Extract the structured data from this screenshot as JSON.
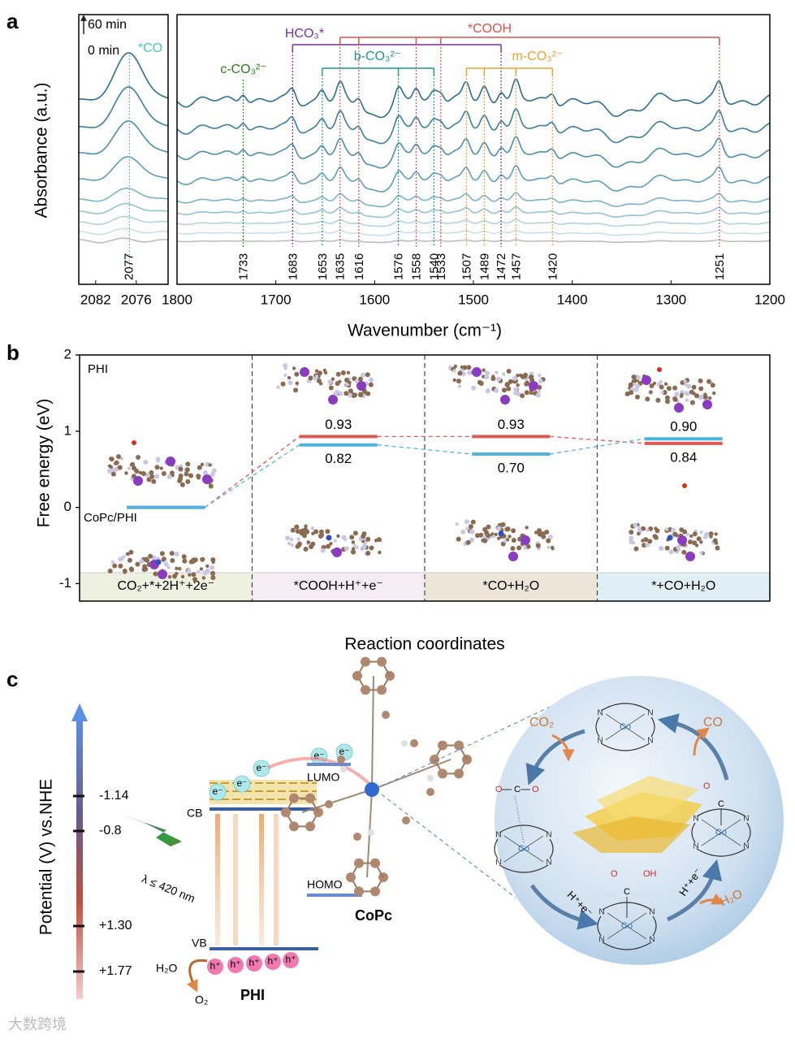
{
  "chart_data": [
    {
      "type": "spectra",
      "label": "a",
      "ylabel": "Absorbance (a.u.)",
      "xlabel": "Wavenumber (cm⁻¹)",
      "time_end": "60 min",
      "time_start": "0 min",
      "left": {
        "xlim": [
          2084.5,
          2071.3
        ],
        "xticks": [
          2082,
          2076
        ],
        "peak": {
          "name": "*CO",
          "value": 2077,
          "color": "#4cc3c3"
        }
      },
      "right": {
        "xlim": [
          1800,
          1200
        ],
        "xticks": [
          1800,
          1700,
          1600,
          1500,
          1400,
          1300,
          1200
        ],
        "species": [
          {
            "name": "c-CO₃²⁻",
            "color": "#2e7d1e",
            "peaks": [
              1733
            ]
          },
          {
            "name": "HCO₃*",
            "color": "#7b2d9b",
            "peaks": [
              1683,
              1472
            ]
          },
          {
            "name": "b-CO₃²⁻",
            "color": "#1a9a8a",
            "peaks": [
              1653,
              1576,
              1540
            ]
          },
          {
            "name": "*COOH",
            "color": "#e0504a",
            "peaks": [
              1635,
              1616,
              1558,
              1533,
              1251
            ]
          },
          {
            "name": "m-CO₃²⁻",
            "color": "#f0a030",
            "peaks": [
              1507,
              1489,
              1457,
              1420
            ]
          }
        ]
      }
    },
    {
      "type": "energy_levels",
      "label": "b",
      "ylabel": "Free energy (eV)",
      "xlabel": "Reaction coordinates",
      "categories": [
        "CO₂+*+2H⁺+2e⁻",
        "*COOH+H⁺+e⁻",
        "*CO+H₂O",
        "*+CO+H₂O"
      ],
      "band_colors": [
        "#eef0e0",
        "#f5ecf4",
        "#ede6d8",
        "#e0eef6"
      ],
      "ylim": [
        -1.23,
        2
      ],
      "yticks": [
        -1,
        0,
        1,
        2
      ],
      "series": [
        {
          "name": "PHI",
          "color": "#e05a55",
          "values": [
            0,
            0.93,
            0.93,
            0.84
          ],
          "value_labels": [
            null,
            "0.93",
            "0.93",
            "0.84"
          ]
        },
        {
          "name": "CoPc/PHI",
          "color": "#4fb3e0",
          "values": [
            0,
            0.82,
            0.7,
            0.9
          ],
          "value_labels": [
            null,
            "0.82",
            "0.70",
            "0.90"
          ]
        }
      ]
    }
  ],
  "diagram": {
    "label": "c",
    "axis_label": "Potential (V) vs.NHE",
    "potentials": [
      "-1.14",
      "-0.8",
      "+1.30",
      "+1.77"
    ],
    "light": "λ ≤ 420 nm",
    "cb": "CB",
    "vb": "VB",
    "lumo": "LUMO",
    "homo": "HOMO",
    "electron": "e⁻",
    "hole": "h⁺",
    "water": "H₂O",
    "oxygen": "O₂",
    "phi": "PHI",
    "copc": "CoPc",
    "cycle": {
      "co2": "CO₂",
      "co": "CO",
      "proton_electron": "H⁺+e⁻",
      "water": "H₂O",
      "cobalt": "Co",
      "nitrogen": "N",
      "oxygen": "O",
      "carbon": "C",
      "hydroxyl": "OH"
    },
    "watermark": "大数跨境"
  }
}
